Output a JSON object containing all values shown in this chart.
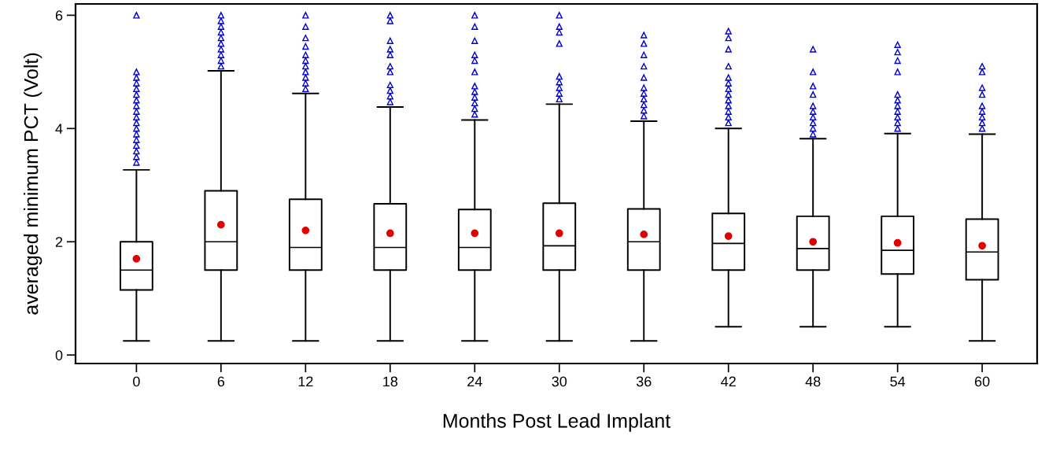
{
  "chart_data": {
    "type": "box",
    "xlabel": "Months Post Lead Implant",
    "ylabel": "averaged minimum PCT (Volt)",
    "categories": [
      "0",
      "6",
      "12",
      "18",
      "24",
      "30",
      "36",
      "42",
      "48",
      "54",
      "60"
    ],
    "ylim": [
      -0.15,
      6.2
    ],
    "yticks": [
      0,
      2,
      4,
      6
    ],
    "grid": false,
    "marker": "triangle",
    "series": [
      {
        "color": "#000000",
        "boxes": [
          {
            "low": 0.25,
            "q1": 1.15,
            "median": 1.5,
            "q3": 2.0,
            "high": 3.27,
            "mean": 1.7,
            "outliers": [
              3.4,
              3.5,
              3.6,
              3.7,
              3.8,
              3.9,
              4.0,
              4.1,
              4.2,
              4.3,
              4.4,
              4.5,
              4.6,
              4.7,
              4.8,
              4.9,
              5.0,
              6.0
            ]
          },
          {
            "low": 0.25,
            "q1": 1.5,
            "median": 2.0,
            "q3": 2.9,
            "high": 5.02,
            "mean": 2.3,
            "outliers": [
              5.1,
              5.2,
              5.3,
              5.4,
              5.5,
              5.6,
              5.7,
              5.8,
              5.9,
              6.0
            ]
          },
          {
            "low": 0.25,
            "q1": 1.5,
            "median": 1.9,
            "q3": 2.75,
            "high": 4.62,
            "mean": 2.2,
            "outliers": [
              4.7,
              4.8,
              4.9,
              5.0,
              5.1,
              5.2,
              5.3,
              5.45,
              5.6,
              5.8,
              6.0
            ]
          },
          {
            "low": 0.25,
            "q1": 1.5,
            "median": 1.9,
            "q3": 2.67,
            "high": 4.38,
            "mean": 2.15,
            "outliers": [
              4.47,
              4.57,
              4.67,
              4.77,
              5.0,
              5.1,
              5.3,
              5.4,
              5.55,
              5.9,
              6.0
            ]
          },
          {
            "low": 0.25,
            "q1": 1.5,
            "median": 1.9,
            "q3": 2.57,
            "high": 4.15,
            "mean": 2.15,
            "outliers": [
              4.25,
              4.35,
              4.45,
              4.55,
              4.65,
              4.75,
              5.0,
              5.2,
              5.3,
              5.55,
              5.8,
              6.0
            ]
          },
          {
            "low": 0.25,
            "q1": 1.5,
            "median": 1.93,
            "q3": 2.68,
            "high": 4.43,
            "mean": 2.15,
            "outliers": [
              4.52,
              4.62,
              4.72,
              4.82,
              4.92,
              5.5,
              5.7,
              5.8,
              6.0
            ]
          },
          {
            "low": 0.25,
            "q1": 1.5,
            "median": 2.0,
            "q3": 2.58,
            "high": 4.13,
            "mean": 2.13,
            "outliers": [
              4.22,
              4.32,
              4.42,
              4.52,
              4.62,
              4.72,
              4.9,
              5.1,
              5.3,
              5.5,
              5.65
            ]
          },
          {
            "low": 0.5,
            "q1": 1.5,
            "median": 1.97,
            "q3": 2.5,
            "high": 4.0,
            "mean": 2.1,
            "outliers": [
              4.1,
              4.2,
              4.3,
              4.4,
              4.5,
              4.6,
              4.7,
              4.8,
              4.9,
              5.1,
              5.4,
              5.6,
              5.72
            ]
          },
          {
            "low": 0.5,
            "q1": 1.5,
            "median": 1.88,
            "q3": 2.45,
            "high": 3.82,
            "mean": 2.0,
            "outliers": [
              3.9,
              4.0,
              4.1,
              4.2,
              4.3,
              4.4,
              4.6,
              4.75,
              5.0,
              5.4
            ]
          },
          {
            "low": 0.5,
            "q1": 1.43,
            "median": 1.85,
            "q3": 2.45,
            "high": 3.91,
            "mean": 1.98,
            "outliers": [
              4.0,
              4.1,
              4.2,
              4.3,
              4.4,
              4.5,
              4.6,
              5.0,
              5.2,
              5.35,
              5.48
            ]
          },
          {
            "low": 0.25,
            "q1": 1.33,
            "median": 1.82,
            "q3": 2.4,
            "high": 3.9,
            "mean": 1.93,
            "outliers": [
              4.0,
              4.1,
              4.2,
              4.3,
              4.4,
              4.6,
              4.72,
              5.0,
              5.1
            ]
          }
        ]
      }
    ]
  }
}
